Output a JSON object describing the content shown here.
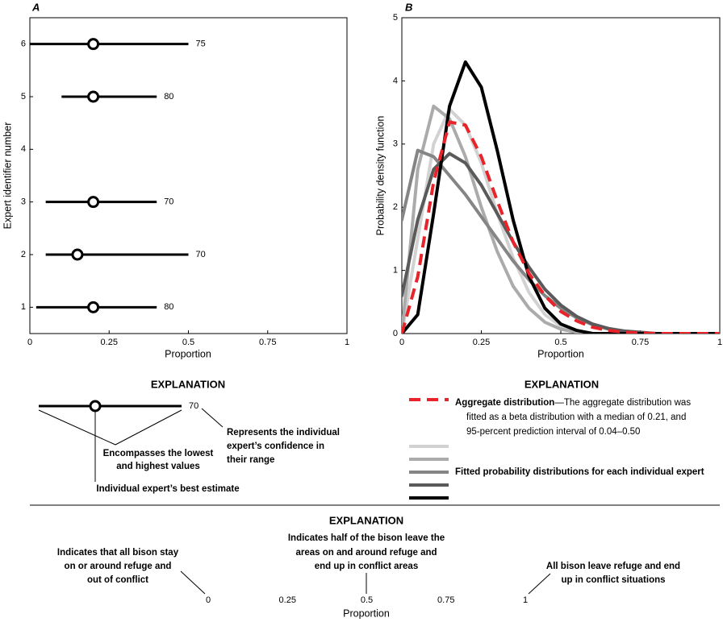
{
  "chart_data": [
    {
      "type": "interval",
      "panel_label": "A",
      "xlabel": "Proportion",
      "ylabel": "Expert identifier number",
      "y": [
        1,
        2,
        3,
        5,
        6
      ],
      "low": [
        0.02,
        0.05,
        0.05,
        0.1,
        0
      ],
      "best": [
        0.2,
        0.15,
        0.2,
        0.2,
        0.2
      ],
      "high": [
        0.4,
        0.5,
        0.4,
        0.4,
        0.5
      ],
      "confidence": [
        80,
        70,
        70,
        80,
        75
      ],
      "color": "#000000",
      "xlim": [
        0,
        1
      ],
      "xticks": [
        0,
        0.25,
        0.5,
        0.75,
        1
      ],
      "ylim": [
        0.5,
        6.5
      ],
      "yticks": [
        1,
        2,
        3,
        4,
        5,
        6
      ]
    },
    {
      "type": "line",
      "panel_label": "B",
      "xlabel": "Proportion",
      "ylabel": "Probability density function",
      "x": [
        0,
        0.05,
        0.1,
        0.15,
        0.2,
        0.25,
        0.3,
        0.35,
        0.4,
        0.45,
        0.5,
        0.55,
        0.6,
        0.65,
        0.7,
        0.75,
        0.8,
        0.85,
        0.9,
        0.95,
        1
      ],
      "series": [
        {
          "color": "#d2d2d2",
          "values": [
            0,
            1.5,
            3.0,
            3.55,
            3.3,
            2.7,
            1.9,
            1.2,
            0.65,
            0.3,
            0.12,
            0.04,
            0,
            0,
            0,
            0,
            0,
            0,
            0,
            0,
            0
          ]
        },
        {
          "color": "#ababab",
          "values": [
            0,
            2.6,
            3.6,
            3.4,
            2.8,
            2.0,
            1.3,
            0.75,
            0.4,
            0.18,
            0.07,
            0.02,
            0,
            0,
            0,
            0,
            0,
            0,
            0,
            0,
            0
          ]
        },
        {
          "color": "#858585",
          "values": [
            1.8,
            2.9,
            2.8,
            2.5,
            2.2,
            1.85,
            1.5,
            1.15,
            0.85,
            0.6,
            0.4,
            0.25,
            0.14,
            0.07,
            0.03,
            0.01,
            0,
            0,
            0,
            0,
            0
          ]
        },
        {
          "color": "#5a5a5a",
          "values": [
            0.6,
            1.8,
            2.6,
            2.85,
            2.7,
            2.35,
            1.9,
            1.45,
            1.05,
            0.7,
            0.45,
            0.27,
            0.15,
            0.08,
            0.04,
            0.02,
            0,
            0,
            0,
            0,
            0
          ]
        },
        {
          "color": "#000000",
          "values": [
            0,
            0.3,
            1.9,
            3.6,
            4.3,
            3.9,
            2.9,
            1.8,
            0.9,
            0.4,
            0.15,
            0.05,
            0,
            0,
            0,
            0,
            0,
            0,
            0,
            0,
            0
          ]
        },
        {
          "color": "#e8232a",
          "dashed": true,
          "values": [
            0,
            0.9,
            2.4,
            3.35,
            3.3,
            2.8,
            2.1,
            1.45,
            0.95,
            0.6,
            0.35,
            0.2,
            0.1,
            0.05,
            0.02,
            0.01,
            0,
            0,
            0,
            0,
            0
          ]
        }
      ],
      "xlim": [
        0,
        1
      ],
      "xticks": [
        0,
        0.25,
        0.5,
        0.75,
        1
      ],
      "ylim": [
        0,
        5
      ],
      "yticks": [
        0,
        1,
        2,
        3,
        4,
        5
      ]
    }
  ],
  "explanation_a": {
    "title": "EXPLANATION",
    "sample_label": "70",
    "range_note": [
      "Encompasses the lowest",
      "and highest values"
    ],
    "best_note": "Individual expert’s best estimate",
    "confidence_note": [
      "Represents the individual",
      "expert’s confidence in",
      "their range"
    ]
  },
  "explanation_b": {
    "title": "EXPLANATION",
    "aggregate": [
      "Aggregate distribution",
      "—The aggregate distribution was",
      "fitted as a beta distribution with a median of 0.21, and",
      "95-percent prediction interval of 0.04–0.50"
    ],
    "experts": "Fitted probability distributions for each individual expert"
  },
  "explanation_scale": {
    "title": "EXPLANATION",
    "ticks": [
      0,
      0.25,
      0.5,
      0.75,
      1
    ],
    "label": "Proportion",
    "low_note": [
      "Indicates that all bison stay",
      "on or around refuge and",
      "out of conflict"
    ],
    "mid_note": [
      "Indicates half of the bison leave the",
      "areas on and around refuge and",
      "end up in conflict areas"
    ],
    "high_note": [
      "All bison leave refuge and end",
      "up in conflict situations"
    ]
  }
}
